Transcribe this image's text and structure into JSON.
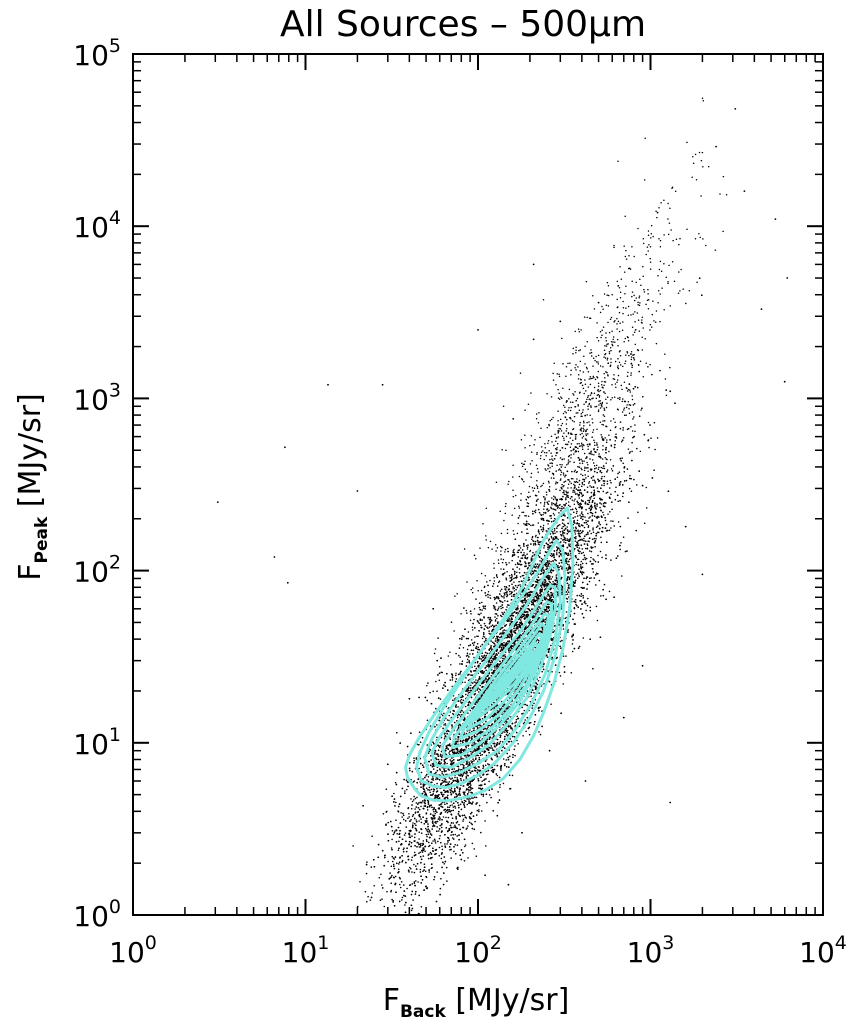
{
  "chart_data": {
    "type": "scatter",
    "title": "All Sources – 500μm",
    "xlabel": {
      "main": "F",
      "sub": "Back",
      "unit": " [MJy/sr]"
    },
    "ylabel": {
      "main": "F",
      "sub": "Peak",
      "unit": " [MJy/sr]"
    },
    "xscale": "log",
    "yscale": "log",
    "xlim": [
      1,
      10000
    ],
    "ylim": [
      1,
      100000
    ],
    "x_ticks": [
      {
        "base": "10",
        "exp": "0",
        "value": 1
      },
      {
        "base": "10",
        "exp": "1",
        "value": 10
      },
      {
        "base": "10",
        "exp": "2",
        "value": 100
      },
      {
        "base": "10",
        "exp": "3",
        "value": 1000
      },
      {
        "base": "10",
        "exp": "4",
        "value": 10000
      }
    ],
    "y_ticks": [
      {
        "base": "10",
        "exp": "0",
        "value": 1
      },
      {
        "base": "10",
        "exp": "1",
        "value": 10
      },
      {
        "base": "10",
        "exp": "2",
        "value": 100
      },
      {
        "base": "10",
        "exp": "3",
        "value": 1000
      },
      {
        "base": "10",
        "exp": "4",
        "value": 10000
      },
      {
        "base": "10",
        "exp": "5",
        "value": 100000
      }
    ],
    "grid": false,
    "legend": "none",
    "point_color": "#000000",
    "contour_color": "#7fe8e0",
    "points_description": "dense cloud of sources; F_Peak increases with F_Back",
    "sampled_points": [
      [
        3.1,
        250
      ],
      [
        6.6,
        120
      ],
      [
        7.6,
        520
      ],
      [
        7.9,
        85
      ],
      [
        13.5,
        1200
      ],
      [
        20,
        290
      ],
      [
        28,
        1200
      ],
      [
        30,
        7.5
      ],
      [
        33,
        4.3
      ],
      [
        40,
        18
      ],
      [
        48,
        2.6
      ],
      [
        55,
        60
      ],
      [
        65,
        9
      ],
      [
        80,
        2.1
      ],
      [
        110,
        1.7
      ],
      [
        150,
        1.5
      ],
      [
        180,
        3
      ],
      [
        260,
        9
      ],
      [
        420,
        6
      ],
      [
        210,
        6000
      ],
      [
        300,
        2800
      ],
      [
        500,
        3600
      ],
      [
        650,
        4500
      ],
      [
        850,
        1900
      ],
      [
        1100,
        12000
      ],
      [
        1300,
        1100
      ],
      [
        2400,
        29000
      ],
      [
        3100,
        48000
      ],
      [
        3500,
        16000
      ],
      [
        5300,
        11000
      ],
      [
        6200,
        5000
      ],
      [
        4400,
        3300
      ],
      [
        6000,
        1250
      ],
      [
        2000,
        95
      ],
      [
        1600,
        180
      ],
      [
        900,
        28
      ],
      [
        700,
        14
      ],
      [
        1300,
        4.5
      ],
      [
        160,
        760
      ],
      [
        100,
        2500
      ],
      [
        50,
        12
      ],
      [
        70,
        5
      ],
      [
        58,
        30
      ],
      [
        210,
        2200
      ]
    ],
    "contours": [
      {
        "level": 1,
        "x": [
          43,
          47,
          55,
          65,
          75,
          90,
          110,
          140,
          175,
          210,
          240,
          275,
          310,
          340,
          355,
          350,
          330,
          300,
          270,
          240,
          220,
          200,
          180,
          160,
          140,
          120,
          100,
          80,
          65,
          53,
          45,
          40,
          38,
          39,
          43
        ],
        "y": [
          5.4,
          4.9,
          4.65,
          4.6,
          4.7,
          4.9,
          5.3,
          6.2,
          8,
          11,
          15,
          22,
          35,
          60,
          110,
          180,
          230,
          210,
          180,
          150,
          125,
          100,
          80,
          65,
          52,
          42,
          32,
          24,
          18,
          13.5,
          10.5,
          8.5,
          7.2,
          6.3,
          5.4
        ]
      },
      {
        "level": 2,
        "x": [
          47,
          55,
          65,
          80,
          100,
          125,
          160,
          200,
          240,
          280,
          310,
          320,
          310,
          285,
          255,
          225,
          195,
          165,
          140,
          115,
          95,
          78,
          63,
          52,
          46,
          44,
          47
        ],
        "y": [
          6.0,
          5.6,
          5.5,
          5.8,
          6.5,
          7.6,
          10,
          14,
          20,
          32,
          55,
          90,
          130,
          150,
          125,
          100,
          80,
          63,
          50,
          39,
          30,
          22,
          16,
          11.5,
          8.8,
          7.2,
          6.0
        ]
      },
      {
        "level": 3,
        "x": [
          52,
          62,
          78,
          100,
          130,
          165,
          205,
          245,
          280,
          300,
          295,
          275,
          245,
          215,
          185,
          155,
          128,
          103,
          82,
          65,
          54,
          49,
          52
        ],
        "y": [
          6.6,
          6.3,
          6.7,
          7.6,
          9,
          12,
          17,
          25,
          40,
          65,
          95,
          110,
          95,
          76,
          60,
          47,
          36,
          27,
          20,
          14.5,
          10.5,
          8.2,
          6.6
        ]
      },
      {
        "level": 4,
        "x": [
          57,
          70,
          90,
          115,
          150,
          190,
          230,
          262,
          282,
          280,
          262,
          235,
          205,
          175,
          145,
          118,
          94,
          74,
          60,
          54,
          57
        ],
        "y": [
          7.4,
          7.2,
          8.2,
          9.7,
          13,
          18,
          27,
          42,
          62,
          80,
          82,
          70,
          56,
          44,
          35,
          27,
          20,
          14.5,
          10.8,
          8.8,
          7.4
        ]
      },
      {
        "level": 5,
        "x": [
          64,
          80,
          104,
          135,
          172,
          212,
          245,
          265,
          268,
          252,
          225,
          195,
          165,
          137,
          112,
          89,
          72,
          62,
          64
        ],
        "y": [
          8.3,
          8.5,
          10,
          12.8,
          17,
          25,
          37,
          52,
          64,
          66,
          56,
          45,
          36,
          28,
          21.5,
          16,
          12,
          9.6,
          8.3
        ]
      },
      {
        "level": 6,
        "x": [
          71,
          90,
          118,
          152,
          192,
          228,
          250,
          256,
          243,
          218,
          188,
          158,
          130,
          106,
          86,
          73,
          71
        ],
        "y": [
          9.4,
          10,
          12,
          15.5,
          22,
          32,
          45,
          55,
          56,
          48,
          39,
          31,
          24,
          18,
          13.5,
          10.8,
          9.4
        ]
      },
      {
        "level": 7,
        "x": [
          79,
          101,
          132,
          170,
          208,
          236,
          245,
          235,
          210,
          180,
          150,
          124,
          101,
          84,
          79
        ],
        "y": [
          10.6,
          11.8,
          14.5,
          20,
          28,
          38,
          47,
          49,
          42,
          34,
          27,
          21,
          16,
          12.4,
          10.6
        ]
      },
      {
        "level": 8,
        "x": [
          87,
          112,
          147,
          186,
          220,
          235,
          227,
          203,
          173,
          144,
          118,
          97,
          87
        ],
        "y": [
          12,
          13.8,
          18,
          25,
          33,
          41,
          43,
          37,
          30,
          23.5,
          18.5,
          14.4,
          12
        ]
      },
      {
        "level": 9,
        "x": [
          96,
          124,
          162,
          200,
          222,
          216,
          194,
          165,
          137,
          113,
          98,
          96
        ],
        "y": [
          13.6,
          16.5,
          22,
          29,
          36,
          38,
          33,
          26.5,
          21,
          16.8,
          14.3,
          13.6
        ]
      },
      {
        "level": 10,
        "x": [
          106,
          137,
          175,
          205,
          208,
          186,
          158,
          131,
          110,
          106
        ],
        "y": [
          15.5,
          19.5,
          26,
          32,
          34,
          30,
          24.5,
          19.5,
          16.5,
          15.5
        ]
      },
      {
        "level": 11,
        "x": [
          117,
          148,
          182,
          196,
          180,
          153,
          128,
          117
        ],
        "y": [
          17.8,
          23,
          29,
          31,
          28,
          23,
          19,
          17.8
        ]
      },
      {
        "level": 12,
        "x": [
          128,
          158,
          182,
          170,
          146,
          128
        ],
        "y": [
          21,
          26.5,
          28,
          25.5,
          22,
          21
        ]
      },
      {
        "level": 13,
        "x": [
          140,
          166,
          160,
          140
        ],
        "y": [
          24,
          27,
          24.6,
          24
        ]
      }
    ]
  }
}
